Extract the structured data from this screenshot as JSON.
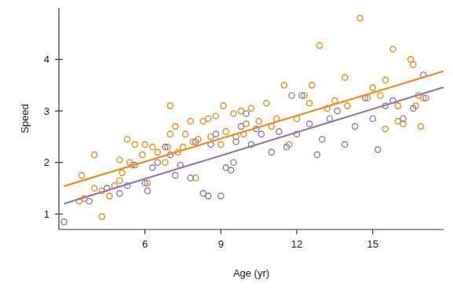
{
  "chart_data": {
    "type": "scatter",
    "x_label": "Age (yr)",
    "y_label": "Speed",
    "xlim": [
      2.6,
      17.8
    ],
    "ylim": [
      0.7,
      5.0
    ],
    "xticks": [
      6,
      9,
      12,
      15
    ],
    "yticks": [
      1,
      2,
      3,
      4
    ],
    "grid": false,
    "series": [
      {
        "color": "#f28a1c",
        "marker": "circle",
        "x": [
          3.5,
          3.6,
          3.4,
          4.0,
          4.0,
          4.3,
          4.3,
          4.6,
          4.8,
          5.0,
          5.0,
          5.1,
          5.3,
          5.4,
          5.5,
          5.6,
          5.9,
          6.0,
          6.3,
          6.1,
          6.5,
          6.8,
          6.9,
          7.0,
          7.0,
          7.2,
          7.3,
          7.5,
          7.6,
          7.8,
          7.9,
          8.0,
          8.1,
          8.3,
          8.5,
          8.6,
          8.8,
          9.0,
          9.1,
          9.2,
          9.5,
          9.6,
          9.8,
          9.9,
          10.0,
          10.2,
          10.5,
          10.8,
          11.0,
          11.2,
          11.5,
          11.7,
          12.0,
          12.3,
          12.5,
          12.6,
          12.9,
          13.2,
          13.5,
          13.9,
          14.0,
          14.5,
          14.8,
          15.0,
          15.3,
          15.5,
          15.5,
          15.8,
          16.0,
          16.2,
          16.5,
          16.6,
          16.7,
          16.8,
          16.9,
          17.0,
          16.0
        ],
        "values": [
          1.75,
          1.3,
          1.25,
          2.15,
          1.5,
          1.45,
          0.95,
          1.35,
          1.55,
          1.65,
          2.05,
          1.8,
          2.45,
          2.0,
          1.95,
          2.35,
          2.15,
          2.35,
          2.3,
          1.6,
          2.2,
          2.0,
          2.3,
          2.55,
          3.1,
          2.7,
          2.2,
          2.3,
          2.55,
          2.8,
          2.4,
          1.7,
          2.45,
          2.8,
          2.85,
          2.5,
          2.9,
          2.35,
          3.1,
          2.6,
          2.95,
          2.5,
          3.0,
          2.55,
          2.75,
          3.05,
          2.8,
          3.15,
          2.7,
          2.85,
          3.5,
          2.35,
          2.85,
          3.3,
          3.15,
          3.5,
          4.27,
          3.05,
          3.2,
          3.65,
          3.1,
          4.8,
          3.25,
          3.45,
          3.3,
          3.6,
          2.65,
          4.2,
          2.8,
          2.75,
          4.0,
          3.9,
          3.1,
          3.3,
          2.7,
          3.25,
          3.1
        ]
      },
      {
        "color": "#8c7bb5",
        "marker": "circle",
        "x": [
          2.8,
          3.8,
          4.5,
          5.0,
          5.3,
          5.6,
          6.0,
          6.1,
          6.3,
          6.5,
          6.8,
          7.0,
          7.2,
          7.4,
          7.8,
          8.0,
          8.3,
          8.5,
          8.6,
          8.8,
          9.0,
          9.2,
          9.4,
          9.5,
          9.6,
          9.8,
          10.0,
          10.2,
          10.4,
          10.6,
          11.0,
          11.3,
          11.6,
          11.8,
          12.0,
          12.2,
          12.5,
          12.8,
          13.0,
          13.3,
          13.6,
          13.9,
          14.3,
          14.7,
          15.0,
          15.2,
          15.5,
          15.8,
          16.2,
          16.6,
          17.0,
          17.1
        ],
        "values": [
          0.85,
          1.25,
          1.5,
          1.4,
          1.55,
          1.95,
          1.6,
          1.45,
          1.9,
          2.0,
          2.3,
          2.15,
          1.75,
          1.95,
          1.7,
          2.4,
          1.4,
          1.35,
          2.35,
          2.55,
          1.35,
          1.9,
          1.85,
          2.0,
          2.4,
          2.7,
          2.95,
          2.35,
          2.65,
          2.55,
          2.2,
          2.6,
          2.3,
          3.3,
          2.55,
          3.3,
          2.75,
          2.15,
          2.45,
          2.85,
          3.0,
          2.35,
          2.7,
          3.25,
          2.85,
          2.25,
          3.1,
          3.2,
          2.85,
          3.05,
          3.7,
          3.25
        ]
      },
      {
        "type": "line",
        "color": "#f28a1c",
        "line_style": "solid",
        "x": [
          2.8,
          17.8
        ],
        "values": [
          1.54,
          3.77
        ]
      },
      {
        "type": "line",
        "color": "#8c7bb5",
        "line_style": "solid",
        "x": [
          2.8,
          17.8
        ],
        "values": [
          1.2,
          3.46
        ]
      }
    ]
  }
}
